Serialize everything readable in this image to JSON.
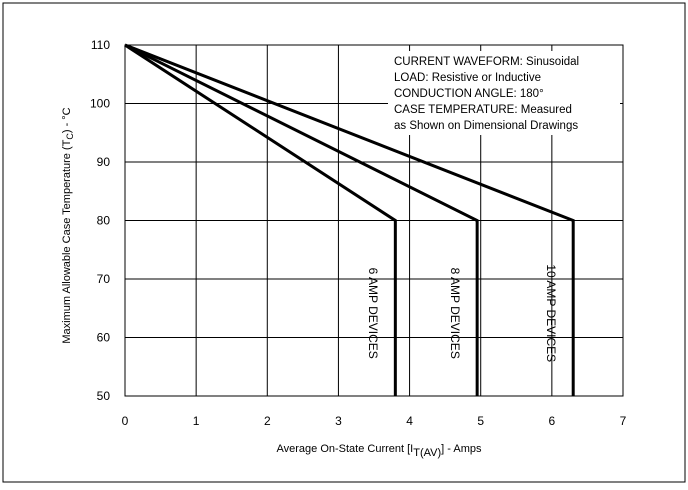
{
  "chart_data": {
    "type": "line",
    "xlabel_main": "Average On-State Current [I",
    "xlabel_sub": "T(AV)",
    "xlabel_tail": "] - Amps",
    "ylabel_main": "Maximum Allowable Case Temperature (T",
    "ylabel_sub": "C",
    "ylabel_tail": ") - °C",
    "xlim": [
      0,
      7
    ],
    "ylim": [
      50,
      110
    ],
    "x_ticks": [
      "0",
      "1",
      "2",
      "3",
      "4",
      "5",
      "6",
      "7"
    ],
    "y_ticks": [
      "50",
      "60",
      "70",
      "80",
      "90",
      "100",
      "110"
    ],
    "grid": true,
    "annotation_lines": [
      "CURRENT WAVEFORM: Sinusoidal",
      "LOAD: Resistive or Inductive",
      "CONDUCTION ANGLE: 180°",
      "CASE TEMPERATURE: Measured",
      "as Shown on Dimensional Drawings"
    ],
    "series": [
      {
        "name": "6 AMP DEVICES",
        "x": [
          0,
          3.8,
          3.8
        ],
        "y": [
          110,
          80,
          50
        ]
      },
      {
        "name": "8 AMP DEVICES",
        "x": [
          0,
          4.95,
          4.95
        ],
        "y": [
          110,
          80,
          50
        ]
      },
      {
        "name": "10 AMP DEVICES",
        "x": [
          0,
          6.3,
          6.3
        ],
        "y": [
          110,
          80,
          50
        ]
      }
    ]
  }
}
